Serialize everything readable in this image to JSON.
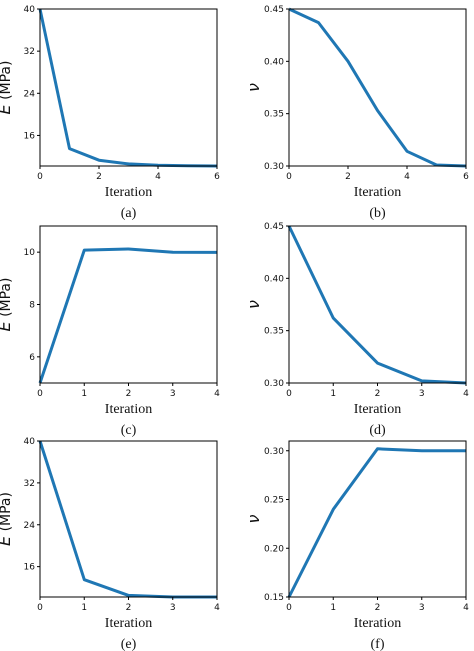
{
  "line_color": "#1f77b4",
  "chart_data": [
    {
      "type": "line",
      "caption": "(a)",
      "xlabel": "Iteration",
      "ylabel": "(MPa)",
      "ylabel_symbol": "E",
      "x": [
        0,
        1,
        2,
        3,
        4,
        5,
        6
      ],
      "values": [
        40,
        13.5,
        11.3,
        10.6,
        10.35,
        10.25,
        10.2
      ],
      "xlim": [
        0,
        6
      ],
      "ylim": [
        10.2,
        40
      ],
      "xticks": [
        "0",
        "2",
        "4",
        "6"
      ],
      "yticks": [
        "16",
        "24",
        "32",
        "40"
      ]
    },
    {
      "type": "line",
      "caption": "(b)",
      "xlabel": "Iteration",
      "ylabel": "",
      "ylabel_symbol": "ν",
      "x": [
        0,
        1,
        2,
        3,
        4,
        5,
        6
      ],
      "values": [
        0.45,
        0.437,
        0.4,
        0.353,
        0.314,
        0.301,
        0.3
      ],
      "xlim": [
        0,
        6
      ],
      "ylim": [
        0.3,
        0.45
      ],
      "xticks": [
        "0",
        "2",
        "4",
        "6"
      ],
      "yticks": [
        "0.30",
        "0.35",
        "0.40",
        "0.45"
      ]
    },
    {
      "type": "line",
      "caption": "(c)",
      "xlabel": "Iteration",
      "ylabel": "(MPa)",
      "ylabel_symbol": "E",
      "x": [
        0,
        1,
        2,
        3,
        4
      ],
      "values": [
        5,
        10.08,
        10.12,
        10.0,
        9.99
      ],
      "xlim": [
        0,
        4
      ],
      "ylim": [
        5,
        11
      ],
      "xticks": [
        "0",
        "1",
        "2",
        "3",
        "4"
      ],
      "yticks": [
        "6",
        "8",
        "10"
      ]
    },
    {
      "type": "line",
      "caption": "(d)",
      "xlabel": "Iteration",
      "ylabel": "",
      "ylabel_symbol": "ν",
      "x": [
        0,
        1,
        2,
        3,
        4
      ],
      "values": [
        0.45,
        0.362,
        0.319,
        0.302,
        0.3
      ],
      "xlim": [
        0,
        4
      ],
      "ylim": [
        0.3,
        0.45
      ],
      "xticks": [
        "0",
        "1",
        "2",
        "3",
        "4"
      ],
      "yticks": [
        "0.30",
        "0.35",
        "0.40",
        "0.45"
      ]
    },
    {
      "type": "line",
      "caption": "(e)",
      "xlabel": "Iteration",
      "ylabel": "(MPa)",
      "ylabel_symbol": "E",
      "x": [
        0,
        1,
        2,
        3,
        4
      ],
      "values": [
        40,
        13.5,
        10.5,
        10.2,
        10.2
      ],
      "xlim": [
        0,
        4
      ],
      "ylim": [
        10.2,
        40
      ],
      "xticks": [
        "0",
        "1",
        "2",
        "3",
        "4"
      ],
      "yticks": [
        "16",
        "24",
        "32",
        "40"
      ]
    },
    {
      "type": "line",
      "caption": "(f)",
      "xlabel": "Iteration",
      "ylabel": "",
      "ylabel_symbol": "ν",
      "x": [
        0,
        1,
        2,
        3,
        4
      ],
      "values": [
        0.15,
        0.24,
        0.302,
        0.3,
        0.3
      ],
      "xlim": [
        0,
        4
      ],
      "ylim": [
        0.15,
        0.31
      ],
      "xticks": [
        "0",
        "1",
        "2",
        "3",
        "4"
      ],
      "yticks": [
        "0.15",
        "0.20",
        "0.25",
        "0.30"
      ]
    }
  ]
}
